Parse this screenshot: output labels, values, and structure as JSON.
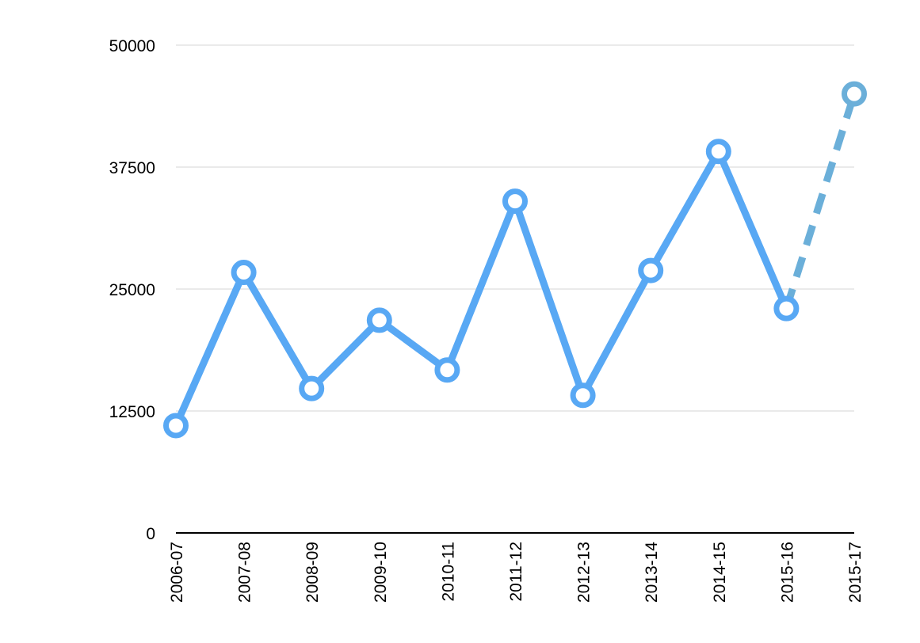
{
  "chart_data": {
    "type": "line",
    "title": "",
    "xlabel": "",
    "ylabel": "",
    "categories": [
      "2006-07",
      "2007-08",
      "2008-09",
      "2009-10",
      "2010-11",
      "2011-12",
      "2012-13",
      "2013-14",
      "2014-15",
      "2015-16",
      "2015-17"
    ],
    "ylim": [
      0,
      50000
    ],
    "y_ticks": [
      "0",
      "12500",
      "25000",
      "37500",
      "50000"
    ],
    "grid": "horizontal",
    "series": [
      {
        "values": [
          11000,
          26700,
          14800,
          21800,
          16700,
          34000,
          14100,
          26900,
          39100,
          23000,
          null
        ],
        "color": "#58A8F4",
        "style": "solid"
      },
      {
        "values": [
          null,
          null,
          null,
          null,
          null,
          null,
          null,
          null,
          null,
          23000,
          45000
        ],
        "color": "#6BAFD9",
        "style": "dashed"
      }
    ]
  }
}
